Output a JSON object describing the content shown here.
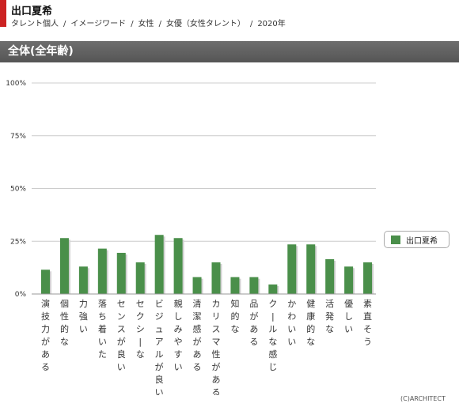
{
  "header": {
    "title": "出口夏希",
    "breadcrumb": [
      "タレント個人",
      "イメージワード",
      "女性",
      "女優（女性タレント）",
      "2020年"
    ]
  },
  "section": {
    "title": "全体(全年齢)"
  },
  "colors": {
    "accent": "#cc2222",
    "bar": "#4a8f4a",
    "bar_shadow": "#d0d0d0",
    "grid": "#cccccc"
  },
  "chart_data": {
    "type": "bar",
    "categories": [
      "演技力がある",
      "個性的な",
      "力強い",
      "落ち着いた",
      "センスが良い",
      "セクシーな",
      "ビジュアルが良い",
      "親しみやすい",
      "清潔感がある",
      "カリスマ性がある",
      "知的な",
      "品がある",
      "クールな感じ",
      "かわいい",
      "健康的な",
      "活発な",
      "優しい",
      "素直そう"
    ],
    "category_display": [
      "演技力がある",
      "個性的な",
      "力強い",
      "落ち着いた",
      "センスが良い",
      "セクシ|な",
      "ビジュアルが良い",
      "親しみやすい",
      "清潔感がある",
      "カリスマ性がある",
      "知的な",
      "品がある",
      "ク|ルな感じ",
      "かわいい",
      "健康的な",
      "活発な",
      "優しい",
      "素直そう"
    ],
    "series": [
      {
        "name": "出口夏希",
        "values": [
          11.5,
          26.5,
          13,
          21.5,
          19.5,
          15,
          28,
          26.5,
          8,
          15,
          8,
          8,
          4.5,
          23.5,
          23.5,
          16.5,
          13,
          15
        ]
      }
    ],
    "y_ticks": [
      "0%",
      "25%",
      "50%",
      "75%",
      "100%"
    ],
    "ylim": [
      0,
      100
    ],
    "grid": true,
    "legend": "right"
  },
  "footer": {
    "copyright": "(C)ARCHITECT"
  }
}
